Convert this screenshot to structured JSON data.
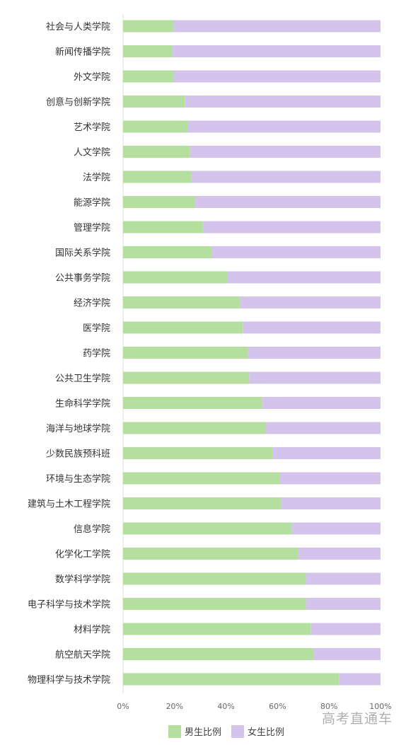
{
  "chart_data": {
    "type": "bar",
    "orientation": "horizontal",
    "stacked": "percent",
    "categories": [
      "社会与人类学院",
      "新闻传播学院",
      "外文学院",
      "创意与创新学院",
      "艺术学院",
      "人文学院",
      "法学院",
      "能源学院",
      "管理学院",
      "国际关系学院",
      "公共事务学院",
      "经济学院",
      "医学院",
      "药学院",
      "公共卫生学院",
      "生命科学学院",
      "海洋与地球学院",
      "少数民族预科班",
      "环境与生态学院",
      "建筑与土木工程学院",
      "信息学院",
      "化学化工学院",
      "数学科学学院",
      "电子科学与技术学院",
      "材料学院",
      "航空航天学院",
      "物理科学与技术学院"
    ],
    "series": [
      {
        "name": "男生比例",
        "color": "#b5df9f",
        "values": [
          19.5,
          19,
          19.5,
          24,
          25,
          26,
          26.5,
          28,
          31,
          34.5,
          40.5,
          45.5,
          46.5,
          48.5,
          49,
          54,
          55.5,
          58,
          61,
          61.5,
          65.5,
          68,
          71,
          71,
          73,
          74,
          84
        ]
      },
      {
        "name": "女生比例",
        "color": "#d4c4ec",
        "values": [
          80.5,
          81,
          80.5,
          76,
          75,
          74,
          73.5,
          72,
          69,
          65.5,
          59.5,
          54.5,
          53.5,
          51.5,
          51,
          46,
          44.5,
          42,
          39,
          38.5,
          34.5,
          32,
          29,
          29,
          27,
          26,
          16
        ]
      }
    ],
    "xlim": [
      0,
      100
    ],
    "xticks": [
      "0%",
      "20%",
      "40%",
      "60%",
      "80%",
      "100%"
    ],
    "legend_position": "bottom",
    "grid": false
  },
  "watermark": "高考直通车"
}
